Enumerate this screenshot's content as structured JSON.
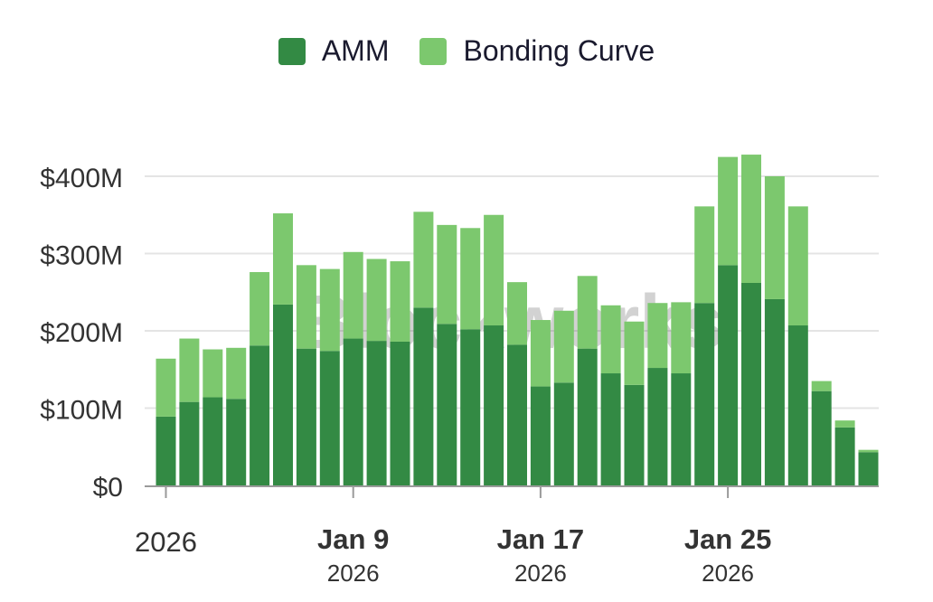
{
  "chart_data": {
    "type": "bar",
    "stacked": true,
    "title": "",
    "xlabel": "",
    "ylabel": "",
    "watermark": "Blockworks",
    "ylim": [
      0,
      430
    ],
    "y_ticks": [
      {
        "value": 0,
        "label": "$0"
      },
      {
        "value": 100,
        "label": "$100M"
      },
      {
        "value": 200,
        "label": "$200M"
      },
      {
        "value": 300,
        "label": "$300M"
      },
      {
        "value": 400,
        "label": "$400M"
      }
    ],
    "x_ticks": [
      {
        "index": 0,
        "label": "2026",
        "sublabel": ""
      },
      {
        "index": 8,
        "label": "Jan 9",
        "sublabel": "2026"
      },
      {
        "index": 16,
        "label": "Jan 17",
        "sublabel": "2026"
      },
      {
        "index": 24,
        "label": "Jan 25",
        "sublabel": "2026"
      }
    ],
    "legend_position": "top-center",
    "series": [
      {
        "name": "AMM",
        "color": "#338a44",
        "values": [
          89,
          108,
          114,
          112,
          181,
          234,
          177,
          174,
          190,
          187,
          186,
          230,
          209,
          202,
          207,
          182,
          128,
          133,
          177,
          145,
          130,
          152,
          145,
          236,
          285,
          262,
          241,
          207,
          122,
          75,
          43
        ]
      },
      {
        "name": "Bonding Curve",
        "color": "#7cc86e",
        "values": [
          75,
          82,
          62,
          66,
          95,
          118,
          108,
          106,
          112,
          106,
          104,
          124,
          128,
          131,
          143,
          81,
          86,
          93,
          94,
          88,
          82,
          84,
          92,
          125,
          140,
          166,
          159,
          154,
          13,
          9,
          3
        ]
      }
    ]
  }
}
